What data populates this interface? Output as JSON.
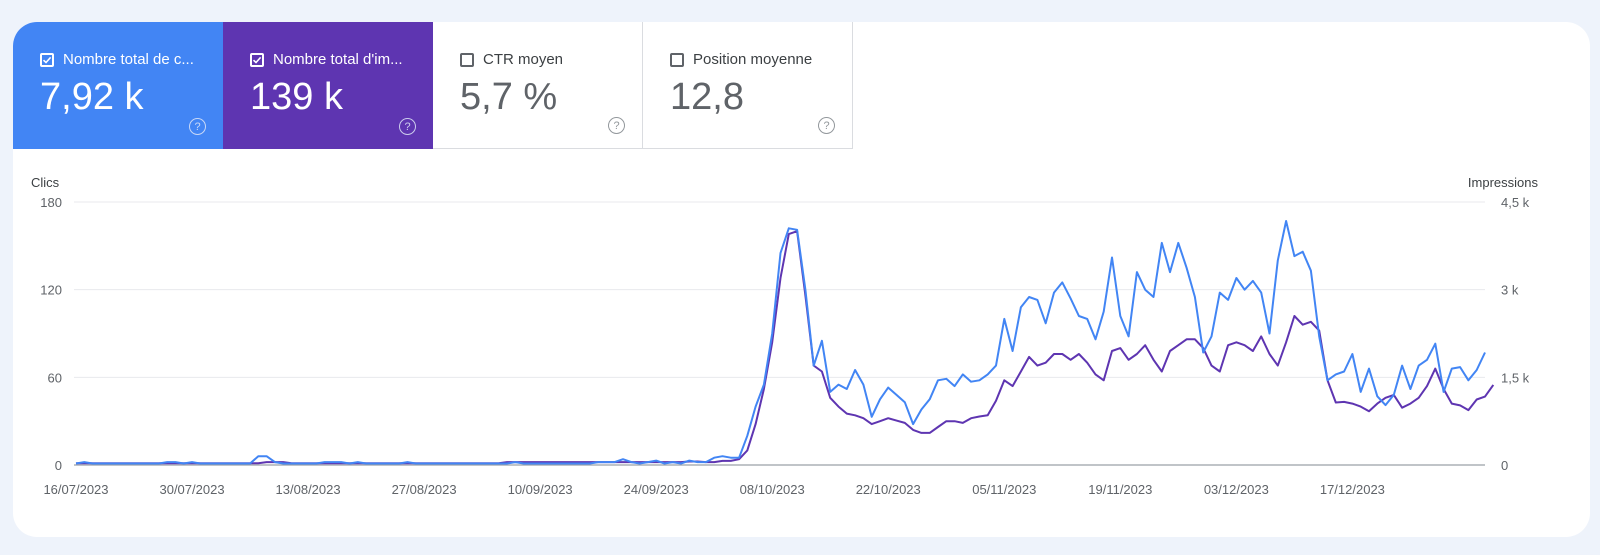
{
  "metrics": [
    {
      "label": "Nombre total de c...",
      "value": "7,92 k",
      "checked": true,
      "color": "#4285f4"
    },
    {
      "label": "Nombre total d'im...",
      "value": "139 k",
      "checked": true,
      "color": "#5e35b1"
    },
    {
      "label": "CTR moyen",
      "value": "5,7 %",
      "checked": false
    },
    {
      "label": "Position moyenne",
      "value": "12,8",
      "checked": false
    }
  ],
  "help_glyph": "?",
  "chart_data": {
    "type": "line",
    "ylabel": "Clics",
    "y2label": "Impressions",
    "ylim": [
      0,
      180
    ],
    "y2lim": [
      0,
      4500
    ],
    "yticks": [
      "0",
      "60",
      "120",
      "180"
    ],
    "y2ticks": [
      "0",
      "1,5 k",
      "3 k",
      "4,5 k"
    ],
    "xticks": [
      "16/07/2023",
      "30/07/2023",
      "13/08/2023",
      "27/08/2023",
      "10/09/2023",
      "24/09/2023",
      "08/10/2023",
      "22/10/2023",
      "05/11/2023",
      "19/11/2023",
      "03/12/2023",
      "17/12/2023"
    ],
    "grid": true,
    "series": [
      {
        "name": "Clics",
        "axis": "left",
        "color": "#4285f4",
        "values": [
          1,
          2,
          1,
          1,
          1,
          1,
          1,
          1,
          1,
          1,
          1,
          2,
          2,
          1,
          2,
          1,
          1,
          1,
          1,
          1,
          1,
          1,
          6,
          6,
          2,
          1,
          1,
          1,
          1,
          1,
          2,
          2,
          2,
          1,
          2,
          1,
          1,
          1,
          1,
          1,
          2,
          1,
          1,
          1,
          1,
          1,
          1,
          1,
          1,
          1,
          1,
          1,
          1,
          2,
          1,
          1,
          1,
          1,
          1,
          1,
          1,
          1,
          1,
          2,
          2,
          2,
          4,
          2,
          1,
          2,
          3,
          1,
          2,
          1,
          3,
          2,
          2,
          5,
          6,
          5,
          5,
          20,
          40,
          55,
          90,
          145,
          162,
          161,
          120,
          68,
          85,
          50,
          55,
          52,
          65,
          55,
          33,
          45,
          53,
          48,
          43,
          28,
          38,
          45,
          58,
          59,
          54,
          62,
          57,
          58,
          62,
          68,
          100,
          78,
          108,
          115,
          113,
          97,
          118,
          125,
          114,
          102,
          100,
          86,
          105,
          142,
          102,
          88,
          132,
          120,
          115,
          152,
          132,
          152,
          135,
          115,
          77,
          88,
          118,
          113,
          128,
          120,
          126,
          118,
          90,
          140,
          167,
          143,
          146,
          133,
          88,
          58,
          62,
          64,
          76,
          50,
          66,
          47,
          41,
          48,
          68,
          52,
          68,
          72,
          83,
          50,
          66,
          67,
          58,
          65,
          77
        ]
      },
      {
        "name": "Impressions",
        "axis": "right",
        "color": "#5e35b1",
        "values": [
          30,
          30,
          30,
          30,
          30,
          30,
          30,
          30,
          30,
          30,
          30,
          30,
          30,
          30,
          30,
          30,
          30,
          30,
          30,
          30,
          30,
          30,
          30,
          50,
          50,
          50,
          30,
          30,
          30,
          30,
          30,
          30,
          30,
          30,
          30,
          30,
          30,
          30,
          30,
          30,
          30,
          30,
          30,
          30,
          30,
          30,
          30,
          30,
          30,
          30,
          30,
          30,
          50,
          50,
          50,
          50,
          50,
          50,
          50,
          50,
          50,
          50,
          50,
          50,
          50,
          50,
          50,
          50,
          50,
          50,
          50,
          50,
          50,
          50,
          60,
          60,
          50,
          50,
          70,
          70,
          100,
          250,
          700,
          1300,
          2100,
          3200,
          3950,
          4000,
          2900,
          1700,
          1600,
          1150,
          1000,
          880,
          850,
          800,
          700,
          750,
          800,
          760,
          720,
          600,
          550,
          550,
          650,
          750,
          750,
          720,
          800,
          830,
          850,
          1100,
          1450,
          1350,
          1600,
          1850,
          1700,
          1750,
          1900,
          1900,
          1800,
          1900,
          1750,
          1550,
          1450,
          1950,
          2000,
          1800,
          1900,
          2050,
          1800,
          1600,
          1950,
          2050,
          2150,
          2150,
          2000,
          1700,
          1600,
          2050,
          2100,
          2050,
          1950,
          2200,
          1900,
          1700,
          2100,
          2550,
          2400,
          2450,
          2300,
          1450,
          1070,
          1080,
          1050,
          1000,
          920,
          1050,
          1150,
          1200,
          980,
          1050,
          1150,
          1350,
          1650,
          1300,
          1050,
          1020,
          940,
          1120,
          1170,
          1370
        ]
      }
    ]
  }
}
